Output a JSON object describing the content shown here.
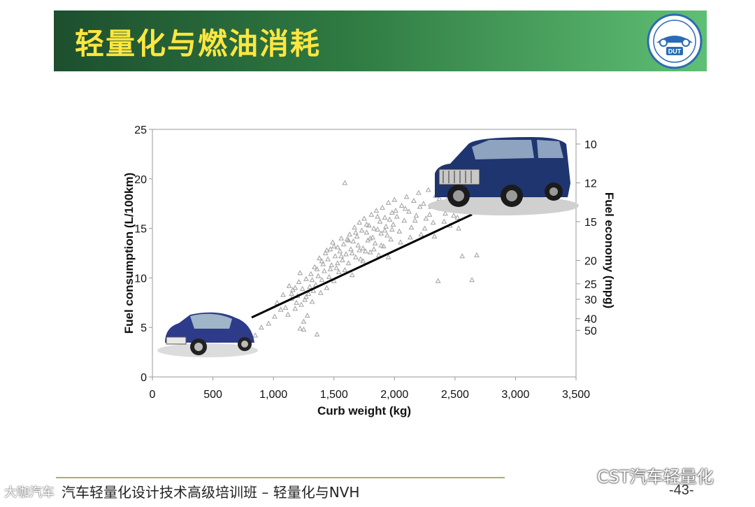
{
  "header": {
    "title": "轻量化与燃油消耗",
    "logo_text": "DUT"
  },
  "footer": {
    "course_title": "汽车轻量化设计技术高级培训班 – 轻量化与NVH",
    "page_number": "-43-",
    "wechat_label": "CST汽车轻量化",
    "watermark": "大咖汽车"
  },
  "colors": {
    "banner_start": "#1d4f2e",
    "banner_end": "#5fbf74",
    "title": "#ffe640",
    "marker": "#a7a7a7",
    "trend": "#000000"
  },
  "chart_data": {
    "type": "scatter",
    "xlabel": "Curb weight (kg)",
    "ylabel": "Fuel consumption (L/100km)",
    "y2label": "Fuel economy (mpg)",
    "xlim": [
      0,
      3500
    ],
    "ylim": [
      0,
      25
    ],
    "x_ticks": [
      0,
      500,
      1000,
      1500,
      2000,
      2500,
      3000,
      3500
    ],
    "x_tick_labels": [
      "0",
      "500",
      "1,000",
      "1,500",
      "2,000",
      "2,500",
      "3,000",
      "3,500"
    ],
    "y_ticks": [
      0,
      5,
      10,
      15,
      20,
      25
    ],
    "y_tick_labels": [
      "0",
      "5",
      "10",
      "15",
      "20",
      "25"
    ],
    "y2_ticks_mpg": [
      10,
      12,
      15,
      20,
      25,
      30,
      40,
      50
    ],
    "trend_line": {
      "x": [
        820,
        2640
      ],
      "y": [
        6.0,
        16.4
      ]
    },
    "marker_shape": "triangle",
    "points": [
      [
        850,
        4.2
      ],
      [
        900,
        5.0
      ],
      [
        960,
        5.4
      ],
      [
        1010,
        6.1
      ],
      [
        1030,
        7.5
      ],
      [
        1060,
        6.8
      ],
      [
        1080,
        8.3
      ],
      [
        1100,
        7.0
      ],
      [
        1120,
        6.3
      ],
      [
        1130,
        9.2
      ],
      [
        1150,
        7.9
      ],
      [
        1160,
        8.8
      ],
      [
        1180,
        6.9
      ],
      [
        1190,
        7.5
      ],
      [
        1200,
        8.2
      ],
      [
        1210,
        9.6
      ],
      [
        1220,
        4.9
      ],
      [
        1230,
        7.3
      ],
      [
        1240,
        8.9
      ],
      [
        1250,
        4.8
      ],
      [
        1260,
        7.8
      ],
      [
        1270,
        9.9
      ],
      [
        1280,
        6.2
      ],
      [
        1290,
        8.4
      ],
      [
        1300,
        9.1
      ],
      [
        1310,
        10.4
      ],
      [
        1320,
        7.6
      ],
      [
        1330,
        8.7
      ],
      [
        1340,
        11.1
      ],
      [
        1350,
        9.3
      ],
      [
        1360,
        4.3
      ],
      [
        1370,
        10.2
      ],
      [
        1380,
        12.0
      ],
      [
        1390,
        8.5
      ],
      [
        1400,
        9.8
      ],
      [
        1410,
        11.4
      ],
      [
        1420,
        10.7
      ],
      [
        1430,
        12.5
      ],
      [
        1440,
        9.0
      ],
      [
        1450,
        11.9
      ],
      [
        1460,
        10.1
      ],
      [
        1470,
        12.9
      ],
      [
        1480,
        11.3
      ],
      [
        1490,
        13.6
      ],
      [
        1500,
        9.7
      ],
      [
        1510,
        12.2
      ],
      [
        1520,
        11.0
      ],
      [
        1530,
        13.1
      ],
      [
        1540,
        10.6
      ],
      [
        1550,
        12.7
      ],
      [
        1560,
        14.0
      ],
      [
        1570,
        11.8
      ],
      [
        1580,
        13.4
      ],
      [
        1590,
        19.6
      ],
      [
        1600,
        12.4
      ],
      [
        1610,
        13.9
      ],
      [
        1620,
        11.5
      ],
      [
        1630,
        14.4
      ],
      [
        1640,
        12.9
      ],
      [
        1650,
        10.3
      ],
      [
        1660,
        13.7
      ],
      [
        1670,
        15.1
      ],
      [
        1680,
        12.1
      ],
      [
        1690,
        14.2
      ],
      [
        1700,
        13.3
      ],
      [
        1710,
        15.6
      ],
      [
        1720,
        11.9
      ],
      [
        1730,
        14.8
      ],
      [
        1740,
        13.0
      ],
      [
        1750,
        16.0
      ],
      [
        1760,
        12.7
      ],
      [
        1770,
        14.6
      ],
      [
        1780,
        13.8
      ],
      [
        1790,
        15.3
      ],
      [
        1800,
        12.6
      ],
      [
        1810,
        16.4
      ],
      [
        1820,
        14.1
      ],
      [
        1830,
        15.0
      ],
      [
        1840,
        13.5
      ],
      [
        1850,
        16.8
      ],
      [
        1860,
        14.9
      ],
      [
        1870,
        12.3
      ],
      [
        1880,
        15.7
      ],
      [
        1890,
        14.5
      ],
      [
        1900,
        17.1
      ],
      [
        1910,
        13.2
      ],
      [
        1920,
        16.1
      ],
      [
        1930,
        15.2
      ],
      [
        1940,
        14.3
      ],
      [
        1950,
        17.6
      ],
      [
        1960,
        15.9
      ],
      [
        1970,
        13.9
      ],
      [
        1980,
        16.6
      ],
      [
        1990,
        15.4
      ],
      [
        2000,
        17.9
      ],
      [
        2020,
        16.2
      ],
      [
        2040,
        14.7
      ],
      [
        2060,
        17.3
      ],
      [
        2080,
        15.8
      ],
      [
        2100,
        18.2
      ],
      [
        2120,
        16.7
      ],
      [
        2140,
        15.1
      ],
      [
        2160,
        17.8
      ],
      [
        2180,
        16.3
      ],
      [
        2200,
        18.6
      ],
      [
        2220,
        14.4
      ],
      [
        2240,
        17.5
      ],
      [
        2260,
        16.0
      ],
      [
        2280,
        18.9
      ],
      [
        2300,
        17.2
      ],
      [
        2320,
        15.6
      ],
      [
        2340,
        18.3
      ],
      [
        2360,
        9.7
      ],
      [
        2380,
        17.0
      ],
      [
        2400,
        19.1
      ],
      [
        2420,
        16.5
      ],
      [
        2440,
        18.0
      ],
      [
        2460,
        15.3
      ],
      [
        2480,
        19.4
      ],
      [
        2500,
        17.7
      ],
      [
        2520,
        16.1
      ],
      [
        2540,
        18.8
      ],
      [
        2560,
        12.2
      ],
      [
        2580,
        17.4
      ],
      [
        2600,
        19.0
      ],
      [
        2620,
        16.9
      ],
      [
        2640,
        9.8
      ],
      [
        2660,
        18.4
      ],
      [
        2680,
        12.3
      ],
      [
        1250,
        5.6
      ],
      [
        1150,
        8.4
      ],
      [
        1180,
        9.0
      ],
      [
        1220,
        10.5
      ],
      [
        1270,
        8.1
      ],
      [
        1320,
        9.8
      ],
      [
        1360,
        10.9
      ],
      [
        1400,
        11.7
      ],
      [
        1440,
        12.8
      ],
      [
        1470,
        10.9
      ],
      [
        1500,
        13.2
      ],
      [
        1530,
        11.5
      ],
      [
        1560,
        12.2
      ],
      [
        1590,
        10.8
      ],
      [
        1620,
        13.8
      ],
      [
        1650,
        12.5
      ],
      [
        1680,
        14.6
      ],
      [
        1710,
        12.8
      ],
      [
        1740,
        11.7
      ],
      [
        1770,
        15.4
      ],
      [
        1800,
        14.0
      ],
      [
        1830,
        12.9
      ],
      [
        1860,
        16.2
      ],
      [
        1890,
        13.3
      ],
      [
        1920,
        14.8
      ],
      [
        1950,
        12.1
      ],
      [
        1980,
        14.9
      ],
      [
        2010,
        16.8
      ],
      [
        2050,
        13.6
      ],
      [
        2090,
        17.0
      ],
      [
        2130,
        14.1
      ],
      [
        2170,
        15.8
      ],
      [
        2210,
        17.2
      ],
      [
        2250,
        15.0
      ],
      [
        2290,
        16.4
      ],
      [
        2330,
        14.2
      ],
      [
        2370,
        18.0
      ],
      [
        2410,
        15.7
      ],
      [
        2450,
        17.1
      ],
      [
        2490,
        16.3
      ],
      [
        2530,
        15.0
      ]
    ]
  }
}
